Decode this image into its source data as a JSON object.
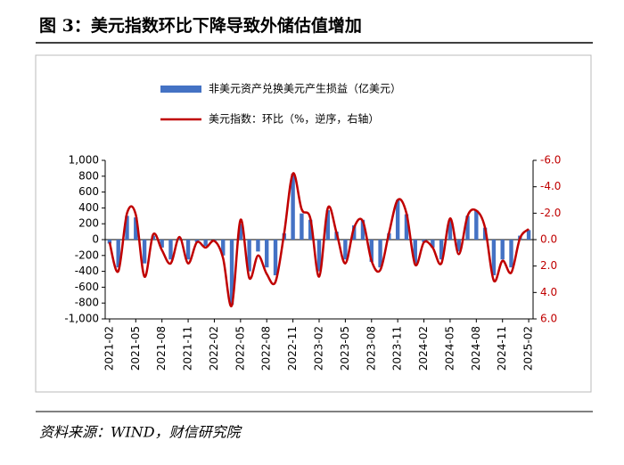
{
  "chart_data": {
    "type": "bar_line",
    "title": "图 3：美元指数环比下降导致外储估值增加",
    "source": "资料来源：WIND，财信研究院",
    "categories": [
      "2021-02",
      null,
      null,
      "2021-05",
      null,
      null,
      "2021-08",
      null,
      null,
      "2021-11",
      null,
      null,
      "2022-02",
      null,
      null,
      "2022-05",
      null,
      null,
      "2022-08",
      null,
      null,
      "2022-11",
      null,
      null,
      "2023-02",
      null,
      null,
      "2023-05",
      null,
      null,
      "2023-08",
      null,
      null,
      "2023-11",
      null,
      null,
      "2024-02",
      null,
      null,
      "2024-05",
      null,
      null,
      "2024-08",
      null,
      null,
      "2024-11",
      null,
      null,
      "2025-02"
    ],
    "series": [
      {
        "name": "非美元资产兑换美元产生损益（亿美元）",
        "kind": "bar",
        "color": "#4472c4",
        "values": [
          -50,
          -350,
          300,
          280,
          -300,
          50,
          -100,
          -250,
          30,
          -250,
          -30,
          -80,
          -20,
          -200,
          -820,
          200,
          -400,
          -150,
          -350,
          -450,
          80,
          830,
          330,
          250,
          -400,
          370,
          100,
          -250,
          180,
          250,
          -280,
          -350,
          80,
          500,
          320,
          -300,
          -30,
          -100,
          -250,
          250,
          -150,
          300,
          370,
          150,
          -450,
          -250,
          -350,
          50,
          120
        ]
      },
      {
        "name": "美元指数：环比（%，逆序，右轴）",
        "kind": "line",
        "axis": "y2",
        "color": "#c00000",
        "values": [
          0.2,
          2.4,
          -2.0,
          -1.9,
          2.8,
          -0.4,
          0.8,
          1.8,
          -0.2,
          1.8,
          0.2,
          0.6,
          0.1,
          1.4,
          5.0,
          -1.5,
          2.9,
          1.2,
          2.6,
          3.2,
          -0.5,
          -5.0,
          -2.3,
          -1.6,
          2.8,
          -2.4,
          -0.5,
          1.8,
          -0.9,
          -1.4,
          1.6,
          2.3,
          -0.5,
          -3.0,
          -2.0,
          1.9,
          0.2,
          0.6,
          1.8,
          -1.6,
          1.1,
          -1.8,
          -2.2,
          -0.9,
          3.1,
          1.6,
          2.5,
          -0.1,
          -0.8
        ]
      }
    ],
    "ylim": [
      -1000,
      1000
    ],
    "yticks": [
      {
        "value": -1000,
        "label": "-1,000"
      },
      -800,
      -600,
      -400,
      -200,
      0,
      200,
      400,
      600,
      800,
      {
        "value": 1000,
        "label": "1,000"
      }
    ],
    "y2lim": [
      6,
      -6
    ],
    "y2ticks": [
      {
        "value": 6,
        "label": "6.0"
      },
      {
        "value": 4,
        "label": "4.0"
      },
      {
        "value": 2,
        "label": "2.0"
      },
      {
        "value": 0,
        "label": "0.0"
      },
      {
        "value": -2,
        "label": "-2.0"
      },
      {
        "value": -4,
        "label": "-4.0"
      },
      {
        "value": -6,
        "label": "-6.0"
      }
    ],
    "y2_color": "#c00000",
    "legend": "top"
  }
}
